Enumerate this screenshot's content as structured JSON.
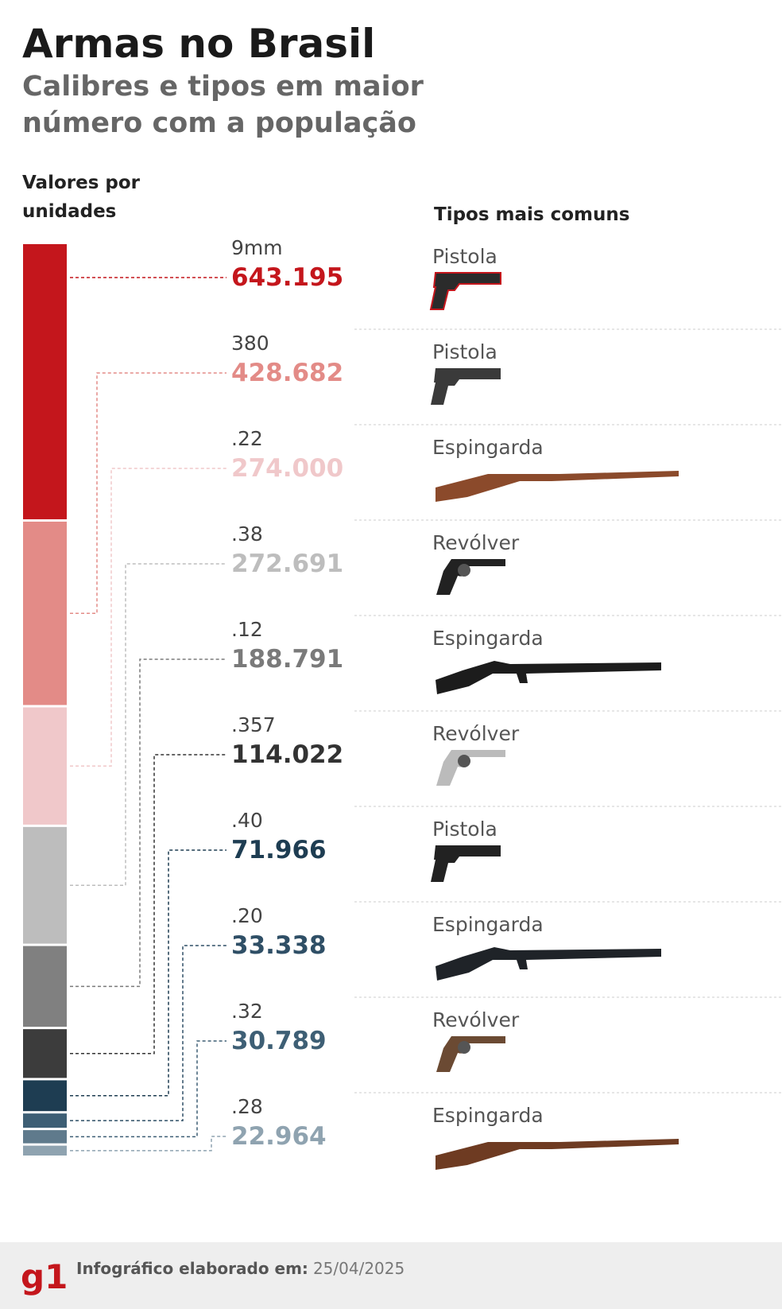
{
  "chart_data": {
    "type": "stacked-bar",
    "title": "Armas no Brasil",
    "subtitle": "Calibres e tipos em maior número com a população",
    "axis_label": "Valores por unidades",
    "types_header": "Tipos mais comuns",
    "categories": [
      "9mm",
      "380",
      ".22",
      ".38",
      ".12",
      ".357",
      ".40",
      ".20",
      ".32",
      ".28"
    ],
    "values": [
      643195,
      428682,
      274000,
      272691,
      188791,
      114022,
      71966,
      33338,
      30789,
      22964
    ],
    "value_labels": [
      "643.195",
      "428.682",
      "274.000",
      "272.691",
      "188.791",
      "114.022",
      "71.966",
      "33.338",
      "30.789",
      "22.964"
    ],
    "colors": [
      "#c4161c",
      "#e38b87",
      "#f0c8ca",
      "#bdbdbd",
      "#808080",
      "#3c3c3c",
      "#1e3d52",
      "#3e5f75",
      "#5f7a8c",
      "#8fa3b0"
    ],
    "label_colors": [
      "#c4161c",
      "#e38b87",
      "#f0c8ca",
      "#bdbdbd",
      "#7a7a7a",
      "#333333",
      "#1e3d52",
      "#2f4f66",
      "#3e5f75",
      "#8fa3b0"
    ],
    "types": [
      "Pistola",
      "Pistola",
      "Espingarda",
      "Revólver",
      "Espingarda",
      "Revólver",
      "Pistola",
      "Espingarda",
      "Revólver",
      "Espingarda"
    ]
  },
  "footer": {
    "logo": "g1",
    "label": "Infográfico elaborado em:",
    "date": "25/04/2025"
  }
}
